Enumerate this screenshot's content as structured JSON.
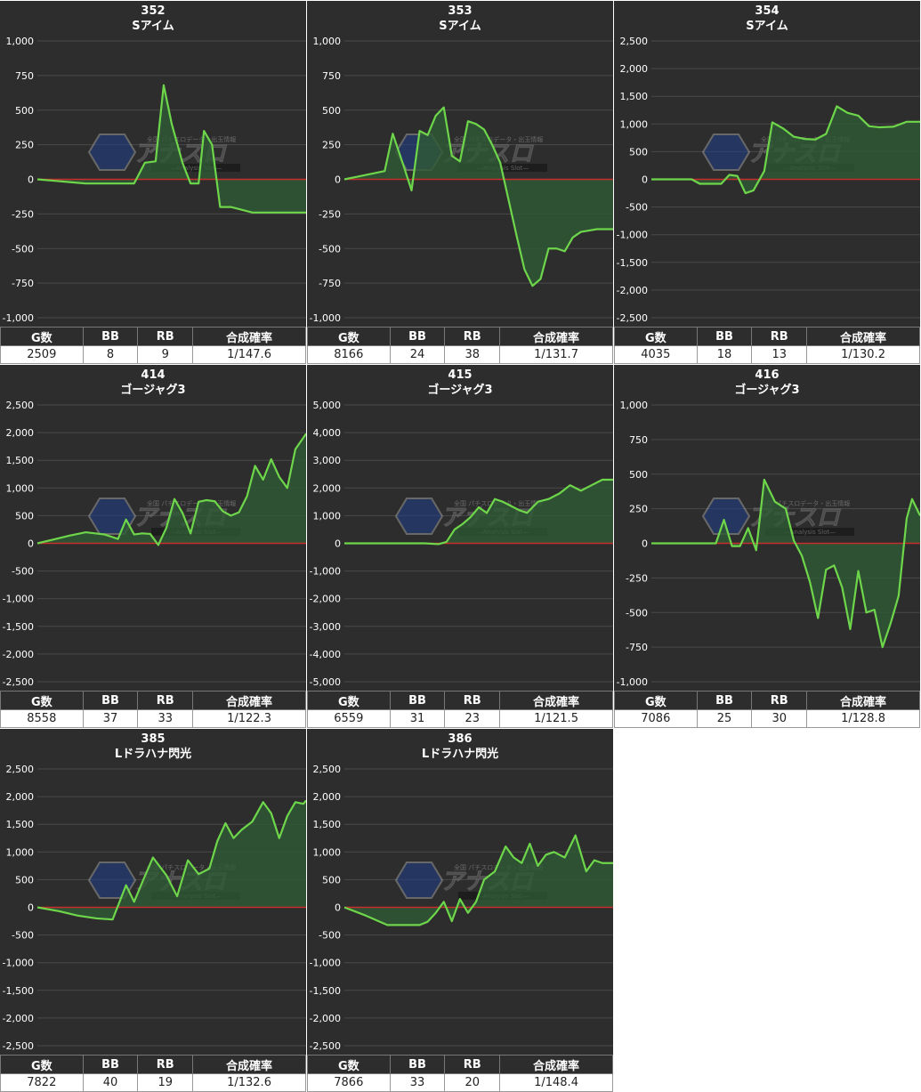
{
  "headers": {
    "g": "G数",
    "bb": "BB",
    "rb": "RB",
    "prob": "合成確率"
  },
  "watermark": {
    "brand": "アナスロ",
    "sub": "—Analysis Slot—",
    "tag": "全国 パチスロデータ・出玉情報"
  },
  "colors": {
    "line": "#6ed64a",
    "fill": "#2f5a35",
    "zero": "#c62d2d",
    "grid": "#4a4a4a",
    "bg": "#2d2d2d"
  },
  "chart_data": [
    {
      "type": "area",
      "machine": "352",
      "title": "Sアイム",
      "ylim": [
        -1000,
        1000
      ],
      "yticks": [
        "1,000",
        "750",
        "500",
        "250",
        "0",
        "-250",
        "-500",
        "-750",
        "-1,000"
      ],
      "x": [
        0,
        0.06,
        0.12,
        0.18,
        0.24,
        0.3,
        0.36,
        0.4,
        0.44,
        0.47,
        0.5,
        0.54,
        0.57,
        0.6,
        0.62,
        0.65,
        0.68,
        0.7,
        0.72,
        0.76,
        0.8,
        0.85,
        0.9,
        0.95,
        1
      ],
      "y": [
        0,
        -10,
        -20,
        -30,
        -30,
        -30,
        -30,
        120,
        130,
        680,
        400,
        120,
        -30,
        -30,
        350,
        250,
        -200,
        -200,
        -200,
        -220,
        -240,
        -240,
        -240,
        -240,
        -240
      ],
      "stats": {
        "g": "2509",
        "bb": "8",
        "rb": "9",
        "prob": "1/147.6"
      }
    },
    {
      "type": "area",
      "machine": "353",
      "title": "Sアイム",
      "ylim": [
        -1000,
        1000
      ],
      "yticks": [
        "1,000",
        "750",
        "500",
        "250",
        "0",
        "-250",
        "-500",
        "-750",
        "-1,000"
      ],
      "x": [
        0,
        0.05,
        0.1,
        0.15,
        0.18,
        0.22,
        0.25,
        0.28,
        0.31,
        0.34,
        0.37,
        0.4,
        0.43,
        0.46,
        0.49,
        0.52,
        0.55,
        0.58,
        0.61,
        0.64,
        0.67,
        0.7,
        0.73,
        0.76,
        0.79,
        0.82,
        0.85,
        0.88,
        0.91,
        0.94,
        0.97,
        1
      ],
      "y": [
        0,
        20,
        40,
        60,
        330,
        100,
        -80,
        350,
        320,
        460,
        520,
        170,
        130,
        420,
        400,
        360,
        250,
        120,
        -140,
        -400,
        -650,
        -770,
        -720,
        -500,
        -500,
        -520,
        -420,
        -380,
        -370,
        -360,
        -360,
        -360
      ],
      "stats": {
        "g": "8166",
        "bb": "24",
        "rb": "38",
        "prob": "1/131.7"
      }
    },
    {
      "type": "area",
      "machine": "354",
      "title": "Sアイム",
      "ylim": [
        -2500,
        2500
      ],
      "yticks": [
        "2,500",
        "2,000",
        "1,500",
        "1,000",
        "500",
        "0",
        "-500",
        "-1,000",
        "-1,500",
        "-2,000",
        "-2,500"
      ],
      "x": [
        0,
        0.05,
        0.1,
        0.15,
        0.18,
        0.22,
        0.26,
        0.29,
        0.32,
        0.35,
        0.38,
        0.42,
        0.45,
        0.49,
        0.53,
        0.57,
        0.61,
        0.65,
        0.69,
        0.73,
        0.77,
        0.81,
        0.85,
        0.9,
        0.95,
        1
      ],
      "y": [
        0,
        0,
        0,
        0,
        -80,
        -80,
        -80,
        80,
        60,
        -250,
        -200,
        150,
        1030,
        920,
        770,
        730,
        720,
        820,
        1320,
        1200,
        1150,
        960,
        940,
        950,
        1040,
        1040
      ],
      "stats": {
        "g": "4035",
        "bb": "18",
        "rb": "13",
        "prob": "1/130.2"
      }
    },
    {
      "type": "area",
      "machine": "414",
      "title": "ゴージャグ3",
      "ylim": [
        -2500,
        2500
      ],
      "yticks": [
        "2,500",
        "2,000",
        "1,500",
        "1,000",
        "500",
        "0",
        "-500",
        "-1,000",
        "-1,500",
        "-2,000",
        "-2,500"
      ],
      "x": [
        0,
        0.06,
        0.12,
        0.18,
        0.25,
        0.3,
        0.33,
        0.36,
        0.39,
        0.42,
        0.45,
        0.48,
        0.51,
        0.54,
        0.57,
        0.6,
        0.63,
        0.66,
        0.69,
        0.72,
        0.75,
        0.78,
        0.81,
        0.84,
        0.87,
        0.9,
        0.93,
        0.96,
        1
      ],
      "y": [
        0,
        70,
        140,
        200,
        160,
        80,
        430,
        160,
        180,
        170,
        -30,
        280,
        800,
        550,
        180,
        750,
        780,
        760,
        580,
        500,
        560,
        850,
        1400,
        1150,
        1520,
        1200,
        1000,
        1700,
        1980
      ],
      "stats": {
        "g": "8558",
        "bb": "37",
        "rb": "33",
        "prob": "1/122.3"
      }
    },
    {
      "type": "area",
      "machine": "415",
      "title": "ゴージャグ3",
      "ylim": [
        -5000,
        5000
      ],
      "yticks": [
        "5,000",
        "4,000",
        "3,000",
        "2,000",
        "1,000",
        "0",
        "-1,000",
        "-2,000",
        "-3,000",
        "-4,000",
        "-5,000"
      ],
      "x": [
        0,
        0.1,
        0.2,
        0.3,
        0.35,
        0.38,
        0.41,
        0.44,
        0.47,
        0.5,
        0.53,
        0.56,
        0.59,
        0.62,
        0.65,
        0.68,
        0.72,
        0.76,
        0.8,
        0.84,
        0.88,
        0.92,
        0.96,
        1
      ],
      "y": [
        0,
        0,
        0,
        0,
        -30,
        50,
        500,
        700,
        950,
        1300,
        1100,
        1600,
        1500,
        1350,
        1200,
        1100,
        1500,
        1600,
        1800,
        2100,
        1900,
        2100,
        2300,
        2300
      ],
      "stats": {
        "g": "6559",
        "bb": "31",
        "rb": "23",
        "prob": "1/121.5"
      }
    },
    {
      "type": "area",
      "machine": "416",
      "title": "ゴージャグ3",
      "ylim": [
        -1000,
        1000
      ],
      "yticks": [
        "1,000",
        "750",
        "500",
        "250",
        "0",
        "-250",
        "-500",
        "-750",
        "-1,000"
      ],
      "x": [
        0,
        0.1,
        0.16,
        0.2,
        0.24,
        0.27,
        0.3,
        0.33,
        0.36,
        0.39,
        0.42,
        0.46,
        0.5,
        0.53,
        0.56,
        0.59,
        0.62,
        0.65,
        0.68,
        0.71,
        0.74,
        0.77,
        0.8,
        0.83,
        0.86,
        0.89,
        0.92,
        0.95,
        0.97,
        1
      ],
      "y": [
        0,
        0,
        0,
        0,
        0,
        170,
        -20,
        -20,
        110,
        -50,
        460,
        300,
        250,
        20,
        -90,
        -280,
        -540,
        -190,
        -160,
        -320,
        -620,
        -200,
        -500,
        -480,
        -750,
        -580,
        -380,
        180,
        320,
        200
      ],
      "stats": {
        "g": "7086",
        "bb": "25",
        "rb": "30",
        "prob": "1/128.8"
      }
    },
    {
      "type": "area",
      "machine": "385",
      "title": "Lドラハナ閃光",
      "ylim": [
        -2500,
        2500
      ],
      "yticks": [
        "2,500",
        "2,000",
        "1,500",
        "1,000",
        "500",
        "0",
        "-500",
        "-1,000",
        "-1,500",
        "-2,000",
        "-2,500"
      ],
      "x": [
        0,
        0.08,
        0.15,
        0.22,
        0.28,
        0.33,
        0.36,
        0.39,
        0.43,
        0.48,
        0.52,
        0.56,
        0.6,
        0.64,
        0.67,
        0.7,
        0.73,
        0.76,
        0.8,
        0.84,
        0.87,
        0.9,
        0.93,
        0.96,
        0.99,
        1
      ],
      "y": [
        0,
        -70,
        -150,
        -200,
        -220,
        400,
        100,
        450,
        900,
        580,
        200,
        850,
        600,
        700,
        1200,
        1520,
        1250,
        1400,
        1550,
        1900,
        1700,
        1250,
        1650,
        1900,
        1870,
        1930
      ],
      "stats": {
        "g": "7822",
        "bb": "40",
        "rb": "19",
        "prob": "1/132.6"
      }
    },
    {
      "type": "area",
      "machine": "386",
      "title": "Lドラハナ閃光",
      "ylim": [
        -2500,
        2500
      ],
      "yticks": [
        "2,500",
        "2,000",
        "1,500",
        "1,000",
        "500",
        "0",
        "-500",
        "-1,000",
        "-1,500",
        "-2,000",
        "-2,500"
      ],
      "x": [
        0,
        0.08,
        0.16,
        0.22,
        0.28,
        0.31,
        0.34,
        0.37,
        0.4,
        0.43,
        0.46,
        0.49,
        0.52,
        0.56,
        0.6,
        0.63,
        0.66,
        0.69,
        0.72,
        0.75,
        0.78,
        0.82,
        0.86,
        0.9,
        0.93,
        0.96,
        1
      ],
      "y": [
        0,
        -150,
        -320,
        -320,
        -320,
        -260,
        -100,
        100,
        -250,
        150,
        -100,
        100,
        500,
        650,
        1100,
        900,
        800,
        1150,
        750,
        950,
        1000,
        900,
        1300,
        650,
        850,
        800,
        800
      ],
      "stats": {
        "g": "7866",
        "bb": "33",
        "rb": "20",
        "prob": "1/148.4"
      }
    }
  ]
}
